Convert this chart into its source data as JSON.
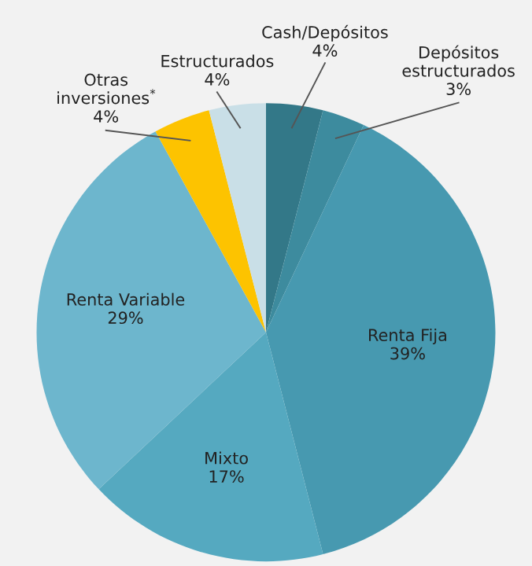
{
  "chart_data": {
    "type": "pie",
    "categories": [
      "Cash/Depósitos",
      "Depósitos\nestructurados",
      "Renta Fija",
      "Mixto",
      "Renta Variable",
      "Otras\ninversiones$^{*}$",
      "Estructurados"
    ],
    "values": [
      4,
      3,
      39,
      17,
      29,
      4,
      4
    ],
    "colors": [
      "#337888",
      "#3d8b9e",
      "#4799b0",
      "#55a9c0",
      "#6db6cd",
      "#fdc300",
      "#c9dfe7"
    ],
    "value_labels": [
      "4%",
      "3%",
      "39%",
      "17%",
      "29%",
      "4%",
      "4%"
    ]
  }
}
